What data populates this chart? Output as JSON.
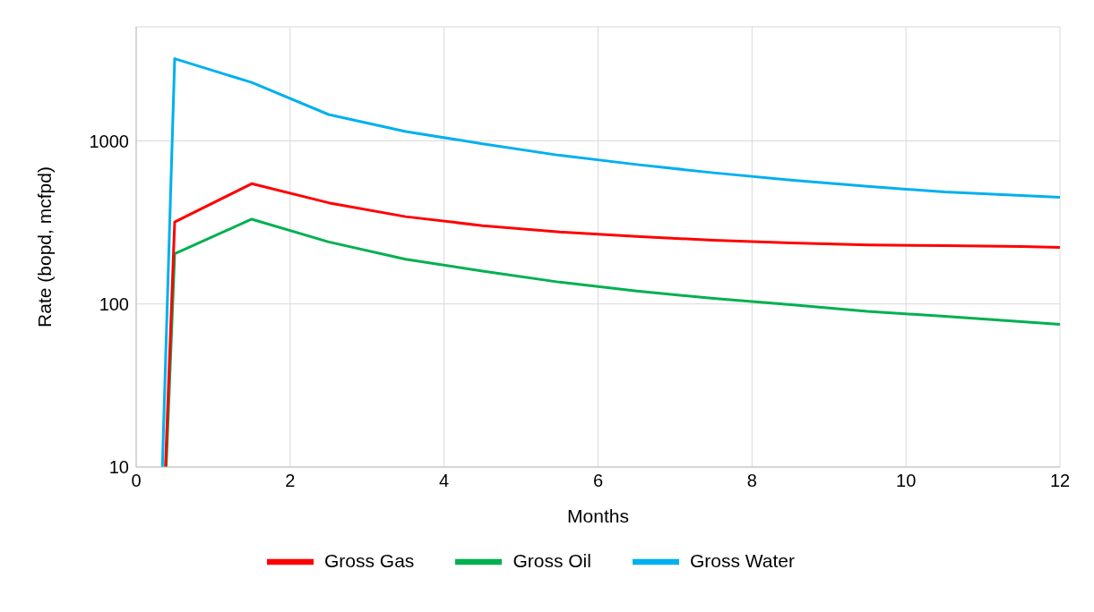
{
  "chart_data": {
    "type": "line",
    "xlabel": "Months",
    "ylabel": "Rate (bopd, mcfpd)",
    "log": "y",
    "grid": true,
    "legend": "bottom",
    "line_style": "solid",
    "marker": "none",
    "xlim": [
      0,
      12
    ],
    "xticks": [
      0,
      2,
      4,
      6,
      8,
      10,
      12
    ],
    "ylim": [
      10,
      5000
    ],
    "yticks": [
      10,
      100,
      1000,
      {
        "value": 5000,
        "label": null
      }
    ],
    "series": [
      {
        "name": "Gross Oil",
        "color": "#00b050",
        "x": [
          0.39,
          0.5,
          1.5,
          2.5,
          3.5,
          4.5,
          5.5,
          6.5,
          7.5,
          8.5,
          9.5,
          10.5,
          11.5,
          12
        ],
        "values": [
          10,
          203,
          331,
          240,
          188,
          159,
          136,
          120,
          108,
          99,
          90,
          84,
          78,
          75
        ]
      },
      {
        "name": "Gross Gas",
        "color": "#ff0000",
        "x": [
          0.38,
          0.5,
          1.5,
          2.5,
          3.5,
          4.5,
          5.5,
          6.5,
          7.5,
          8.5,
          9.5,
          10.5,
          11.5,
          12
        ],
        "values": [
          10,
          318,
          546,
          417,
          343,
          302,
          276,
          259,
          246,
          237,
          230,
          228,
          225,
          222
        ]
      },
      {
        "name": "Gross Water",
        "color": "#00b0f0",
        "x": [
          0.34,
          0.5,
          1.5,
          2.5,
          3.5,
          4.5,
          5.5,
          6.5,
          7.5,
          8.5,
          9.5,
          10.5,
          11.5,
          12
        ],
        "values": [
          10,
          3190,
          2280,
          1450,
          1140,
          960,
          815,
          716,
          637,
          575,
          526,
          486,
          462,
          451
        ]
      }
    ]
  }
}
